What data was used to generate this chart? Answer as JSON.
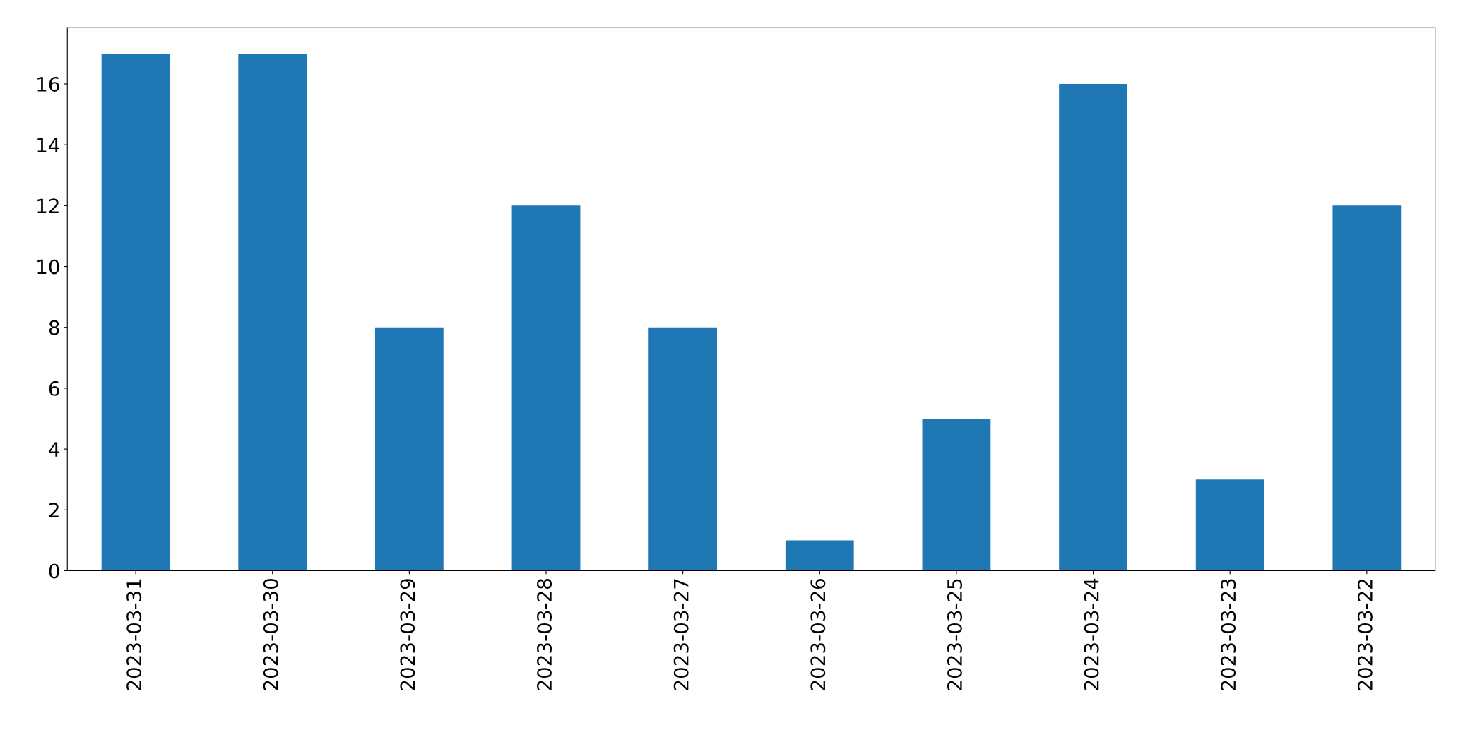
{
  "chart_data": {
    "type": "bar",
    "categories": [
      "2023-03-31",
      "2023-03-30",
      "2023-03-29",
      "2023-03-28",
      "2023-03-27",
      "2023-03-26",
      "2023-03-25",
      "2023-03-24",
      "2023-03-23",
      "2023-03-22"
    ],
    "values": [
      17,
      17,
      8,
      12,
      8,
      1,
      5,
      16,
      3,
      12
    ],
    "color": "#1f77b4",
    "ylim": [
      0,
      17.85
    ],
    "yticks": [
      0,
      2,
      4,
      6,
      8,
      10,
      12,
      14,
      16
    ],
    "grid": false,
    "legend": false
  }
}
